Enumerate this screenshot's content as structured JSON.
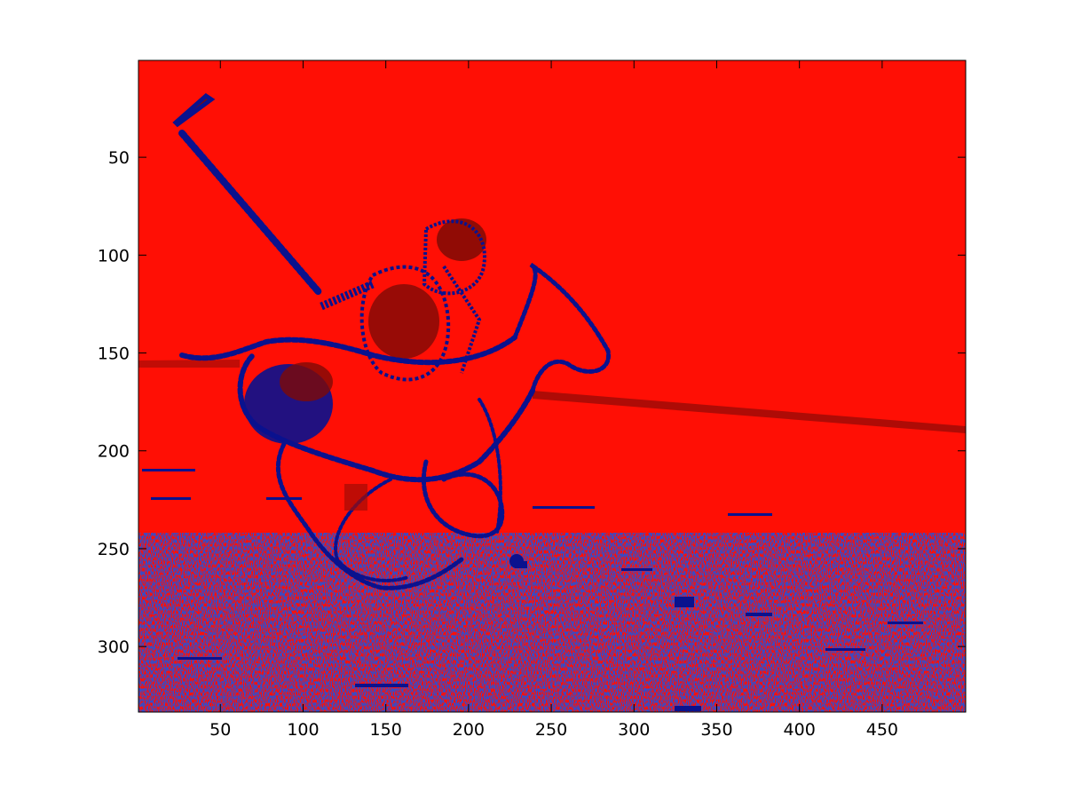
{
  "figure": {
    "type": "image-plot",
    "colormap_colors": {
      "background": "#ff0f05",
      "edges": "#0a128e",
      "dark_regions": "#7e0a06",
      "figure_background": "#ffffff",
      "axes_box": "#000000"
    },
    "image_content": "edge-detected polo player on horse rendered as red/blue label map",
    "x_axis": {
      "range": [
        1,
        500
      ],
      "ticks": [
        50,
        100,
        150,
        200,
        250,
        300,
        350,
        400,
        450
      ],
      "tick_labels": [
        "50",
        "100",
        "150",
        "200",
        "250",
        "300",
        "350",
        "400",
        "450"
      ]
    },
    "y_axis": {
      "range": [
        1,
        333
      ],
      "reversed": true,
      "ticks": [
        50,
        100,
        150,
        200,
        250,
        300
      ],
      "tick_labels": [
        "50",
        "100",
        "150",
        "200",
        "250",
        "300"
      ]
    },
    "grid": false,
    "legend": "none"
  }
}
